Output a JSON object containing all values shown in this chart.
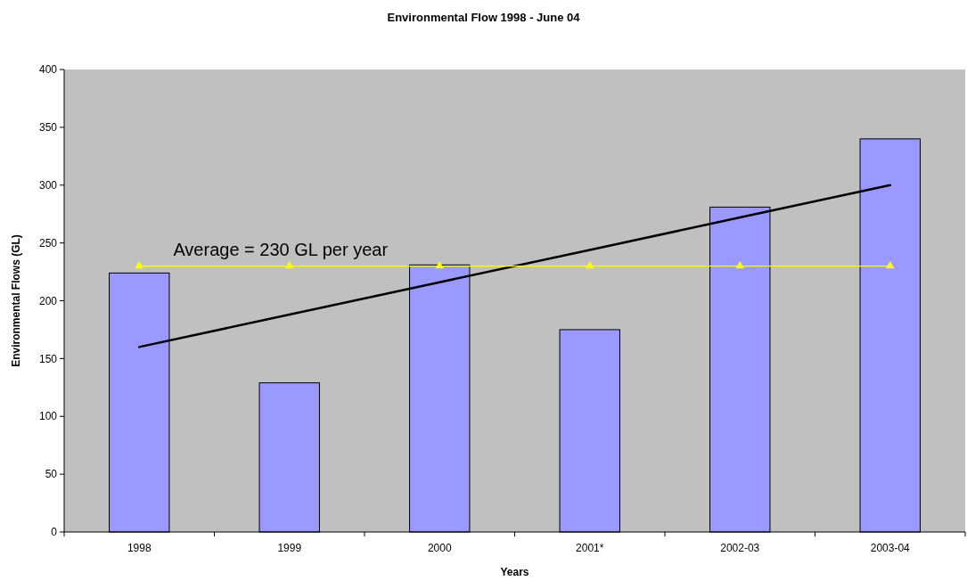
{
  "chart_data": {
    "type": "bar",
    "title": "Environmental Flow 1998 - June 04",
    "xlabel": "Years",
    "ylabel": "Environmental Flows (GL)",
    "categories": [
      "1998",
      "1999",
      "2000",
      "2001*",
      "2002-03",
      "2003-04"
    ],
    "series": [
      {
        "color": "#9999ff",
        "values": [
          224,
          129,
          231,
          175,
          281,
          340
        ]
      },
      {
        "type": "line",
        "color": "#000000",
        "marker": "none",
        "values": [
          160,
          188,
          216,
          244,
          272,
          300
        ]
      },
      {
        "type": "line",
        "color": "#ffff00",
        "marker": "triangle",
        "values": [
          230,
          230,
          230,
          230,
          230,
          230
        ]
      }
    ],
    "annotations": [
      {
        "text": "Average = 230 GL per year",
        "x": "1999",
        "y": 230
      }
    ],
    "ylim": [
      0,
      400
    ],
    "yticks": [
      0,
      50,
      100,
      150,
      200,
      250,
      300,
      350,
      400
    ],
    "grid": false
  }
}
